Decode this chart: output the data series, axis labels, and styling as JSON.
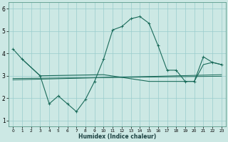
{
  "xlabel": "Humidex (Indice chaleur)",
  "background_color": "#cce8e4",
  "grid_color": "#99cccc",
  "line_color": "#1a6b5a",
  "xlim": [
    -0.5,
    23.5
  ],
  "ylim": [
    0.75,
    6.3
  ],
  "yticks": [
    1,
    2,
    3,
    4,
    5,
    6
  ],
  "xticks": [
    0,
    1,
    2,
    3,
    4,
    5,
    6,
    7,
    8,
    9,
    10,
    11,
    12,
    13,
    14,
    15,
    16,
    17,
    18,
    19,
    20,
    21,
    22,
    23
  ],
  "series1_x": [
    0,
    1,
    3,
    4,
    5,
    6,
    7,
    8,
    9,
    10,
    11,
    12,
    13,
    14,
    15,
    16,
    17,
    18,
    19,
    20,
    21,
    22,
    23
  ],
  "series1_y": [
    4.2,
    3.75,
    3.0,
    1.75,
    2.1,
    1.75,
    1.4,
    1.95,
    2.75,
    3.75,
    5.05,
    5.2,
    5.55,
    5.65,
    5.35,
    4.35,
    3.25,
    3.25,
    2.75,
    2.75,
    3.85,
    3.6,
    3.5
  ],
  "series2_x": [
    1,
    3,
    10,
    15,
    19,
    20,
    21,
    22,
    23
  ],
  "series2_y": [
    3.75,
    3.0,
    3.05,
    2.75,
    2.75,
    2.75,
    3.5,
    3.6,
    3.5
  ],
  "series3_x": [
    0,
    23
  ],
  "series3_y": [
    2.82,
    3.05
  ],
  "series4_x": [
    0,
    23
  ],
  "series4_y": [
    2.88,
    2.98
  ]
}
